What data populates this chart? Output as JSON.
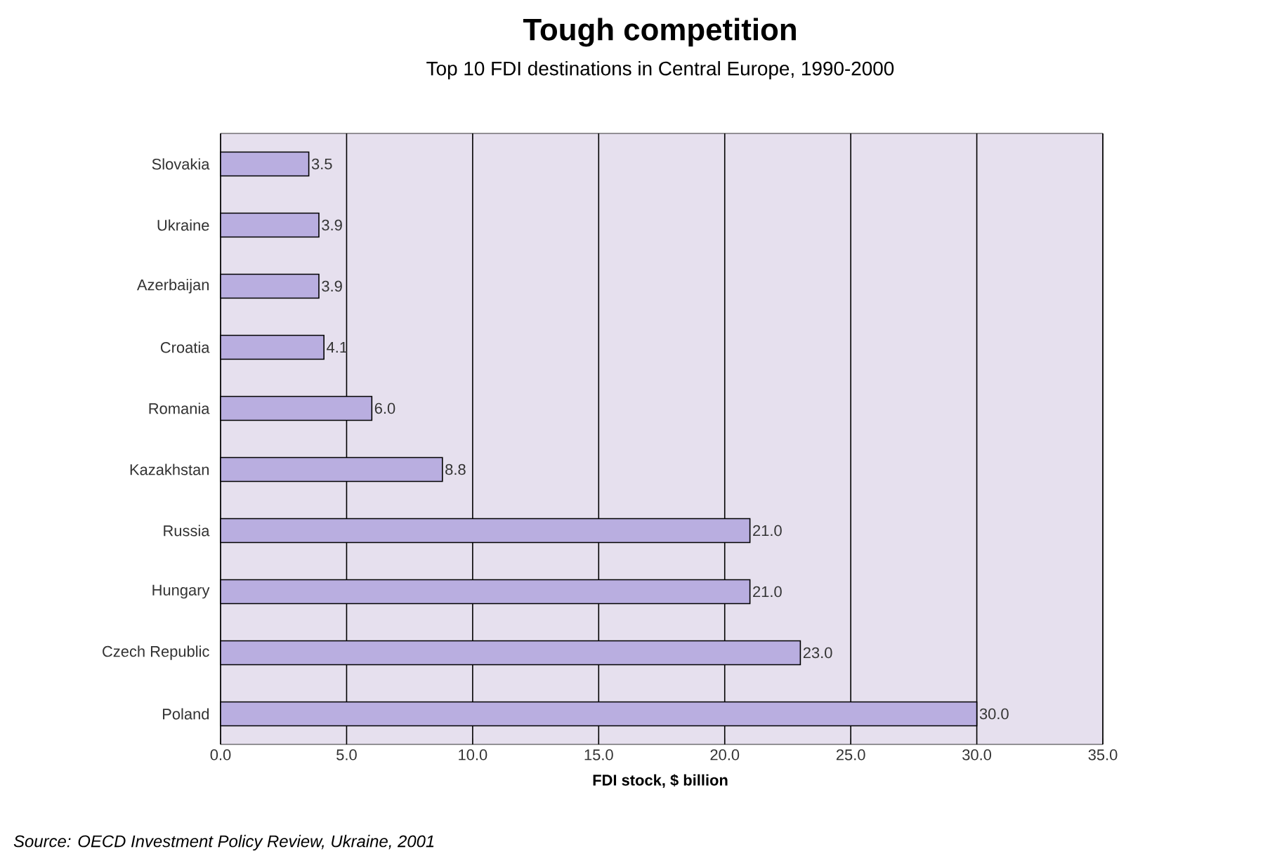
{
  "chart_data": {
    "type": "bar",
    "orientation": "horizontal",
    "title": "Tough competition",
    "subtitle": "Top 10 FDI destinations in Central Europe, 1990-2000",
    "xlabel": "FDI stock, $ billion",
    "categories": [
      "Slovakia",
      "Ukraine",
      "Azerbaijan",
      "Croatia",
      "Romania",
      "Kazakhstan",
      "Russia",
      "Hungary",
      "Czech Republic",
      "Poland"
    ],
    "values": [
      3.5,
      3.9,
      3.9,
      4.1,
      6.0,
      8.8,
      21.0,
      21.0,
      23.0,
      30.0
    ],
    "value_labels": [
      "3.5",
      "3.9",
      "3.9",
      "4.1",
      "6.0",
      "8.8",
      "21.0",
      "21.0",
      "23.0",
      "30.0"
    ],
    "color": "#b9aee0",
    "xlim": [
      0,
      35
    ],
    "xticks": [
      {
        "value": 0,
        "label": "0.0"
      },
      {
        "value": 5,
        "label": "5.0"
      },
      {
        "value": 10,
        "label": "10.0"
      },
      {
        "value": 15,
        "label": "15.0"
      },
      {
        "value": 20,
        "label": "20.0"
      },
      {
        "value": 25,
        "label": "25.0"
      },
      {
        "value": 30,
        "label": "30.0"
      },
      {
        "value": 35,
        "label": "35.0"
      }
    ],
    "grid": "x",
    "annotations": [
      "Source: OECD Investment Policy Review, Ukraine, 2001"
    ]
  }
}
